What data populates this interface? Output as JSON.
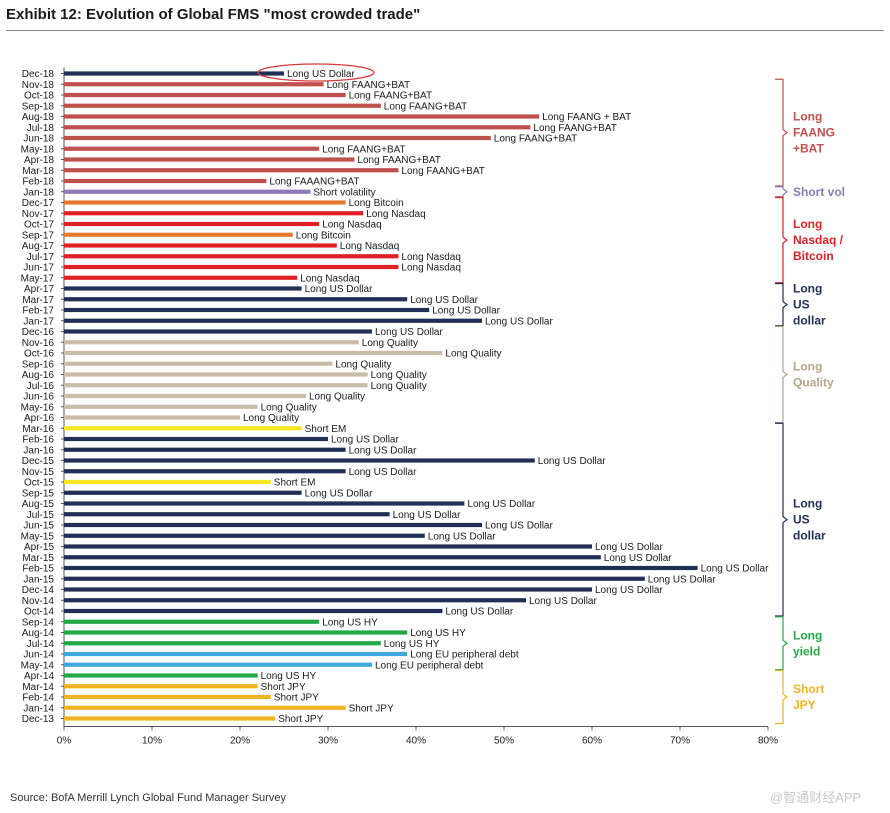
{
  "title": "Exhibit 12: Evolution of Global FMS \"most crowded trade\"",
  "source": "Source: BofA Merrill Lynch Global Fund Manager Survey",
  "watermark": "@智通财经APP",
  "chart_data": {
    "type": "bar",
    "orientation": "horizontal",
    "title": "Exhibit 12: Evolution of Global FMS \"most crowded trade\"",
    "xlim": [
      0,
      80
    ],
    "x_ticks": [
      "0%",
      "10%",
      "20%",
      "30%",
      "40%",
      "50%",
      "60%",
      "70%",
      "80%"
    ],
    "highlighted_category": "Dec-18",
    "bars": [
      {
        "date": "Dec-18",
        "value": 25,
        "label": "Long US Dollar",
        "color": "#1f2f55"
      },
      {
        "date": "Nov-18",
        "value": 29.5,
        "label": "Long FAANG+BAT",
        "color": "#c0504d"
      },
      {
        "date": "Oct-18",
        "value": 32,
        "label": "Long FAANG+BAT",
        "color": "#c0504d"
      },
      {
        "date": "Sep-18",
        "value": 36,
        "label": "Long FAANG+BAT",
        "color": "#c0504d"
      },
      {
        "date": "Aug-18",
        "value": 54,
        "label": "Long FAANG + BAT",
        "color": "#c0504d"
      },
      {
        "date": "Jul-18",
        "value": 53,
        "label": "Long FAANG+BAT",
        "color": "#c0504d"
      },
      {
        "date": "Jun-18",
        "value": 48.5,
        "label": "Long FAANG+BAT",
        "color": "#c0504d"
      },
      {
        "date": "May-18",
        "value": 29,
        "label": "Long FAANG+BAT",
        "color": "#c0504d"
      },
      {
        "date": "Apr-18",
        "value": 33,
        "label": "Long FAANG+BAT",
        "color": "#c0504d"
      },
      {
        "date": "Mar-18",
        "value": 38,
        "label": "Long FAANG+BAT",
        "color": "#c0504d"
      },
      {
        "date": "Feb-18",
        "value": 23,
        "label": "Long FAAANG+BAT",
        "color": "#c0504d"
      },
      {
        "date": "Jan-18",
        "value": 28,
        "label": "Short volatility",
        "color": "#8c7ab8"
      },
      {
        "date": "Dec-17",
        "value": 32,
        "label": "Long Bitcoin",
        "color": "#e57a2e"
      },
      {
        "date": "Nov-17",
        "value": 34,
        "label": "Long Nasdaq",
        "color": "#e01f26"
      },
      {
        "date": "Oct-17",
        "value": 29,
        "label": "Long Nasdaq",
        "color": "#e01f26"
      },
      {
        "date": "Sep-17",
        "value": 26,
        "label": "Long Bitcoin",
        "color": "#e57a2e"
      },
      {
        "date": "Aug-17",
        "value": 31,
        "label": "Long Nasdaq",
        "color": "#e01f26"
      },
      {
        "date": "Jul-17",
        "value": 38,
        "label": "Long Nasdaq",
        "color": "#e01f26"
      },
      {
        "date": "Jun-17",
        "value": 38,
        "label": "Long Nasdaq",
        "color": "#e01f26"
      },
      {
        "date": "May-17",
        "value": 26.5,
        "label": "Long Nasdaq",
        "color": "#e01f26"
      },
      {
        "date": "Apr-17",
        "value": 27,
        "label": "Long US Dollar",
        "color": "#1f2f55"
      },
      {
        "date": "Mar-17",
        "value": 39,
        "label": "Long US Dollar",
        "color": "#1f2f55"
      },
      {
        "date": "Feb-17",
        "value": 41.5,
        "label": "Long US Dollar",
        "color": "#1f2f55"
      },
      {
        "date": "Jan-17",
        "value": 47.5,
        "label": "Long US Dollar",
        "color": "#1f2f55"
      },
      {
        "date": "Dec-16",
        "value": 35,
        "label": "Long US Dollar",
        "color": "#1f2f55"
      },
      {
        "date": "Nov-16",
        "value": 33.5,
        "label": "Long Quality",
        "color": "#c9bda6"
      },
      {
        "date": "Oct-16",
        "value": 43,
        "label": "Long Quality",
        "color": "#c9bda6"
      },
      {
        "date": "Sep-16",
        "value": 30.5,
        "label": "Long Quality",
        "color": "#c9bda6"
      },
      {
        "date": "Aug-16",
        "value": 34.5,
        "label": "Long Quality",
        "color": "#c9bda6"
      },
      {
        "date": "Jul-16",
        "value": 34.5,
        "label": "Long Quality",
        "color": "#c9bda6"
      },
      {
        "date": "Jun-16",
        "value": 27.5,
        "label": "Long Quality",
        "color": "#c9bda6"
      },
      {
        "date": "May-16",
        "value": 22,
        "label": "Long Quality",
        "color": "#c9bda6"
      },
      {
        "date": "Apr-16",
        "value": 20,
        "label": "Long Quality",
        "color": "#c9bda6"
      },
      {
        "date": "Mar-16",
        "value": 27,
        "label": "Short EM",
        "color": "#f5e623"
      },
      {
        "date": "Feb-16",
        "value": 30,
        "label": "Long US Dollar",
        "color": "#1f2f55"
      },
      {
        "date": "Jan-16",
        "value": 32,
        "label": "Long US Dollar",
        "color": "#1f2f55"
      },
      {
        "date": "Dec-15",
        "value": 53.5,
        "label": "Long US Dollar",
        "color": "#1f2f55"
      },
      {
        "date": "Nov-15",
        "value": 32,
        "label": "Long US Dollar",
        "color": "#1f2f55"
      },
      {
        "date": "Oct-15",
        "value": 23.5,
        "label": "Short EM",
        "color": "#f5e623"
      },
      {
        "date": "Sep-15",
        "value": 27,
        "label": "Long US Dollar",
        "color": "#1f2f55"
      },
      {
        "date": "Aug-15",
        "value": 45.5,
        "label": "Long US Dollar",
        "color": "#1f2f55"
      },
      {
        "date": "Jul-15",
        "value": 37,
        "label": "Long US Dollar",
        "color": "#1f2f55"
      },
      {
        "date": "Jun-15",
        "value": 47.5,
        "label": "Long US Dollar",
        "color": "#1f2f55"
      },
      {
        "date": "May-15",
        "value": 41,
        "label": "Long US Dollar",
        "color": "#1f2f55"
      },
      {
        "date": "Apr-15",
        "value": 60,
        "label": "Long US Dollar",
        "color": "#1f2f55"
      },
      {
        "date": "Mar-15",
        "value": 61,
        "label": "Long US Dollar",
        "color": "#1f2f55"
      },
      {
        "date": "Feb-15",
        "value": 72,
        "label": "Long US Dollar",
        "color": "#1f2f55"
      },
      {
        "date": "Jan-15",
        "value": 66,
        "label": "Long US Dollar",
        "color": "#1f2f55"
      },
      {
        "date": "Dec-14",
        "value": 60,
        "label": "Long US Dollar",
        "color": "#1f2f55"
      },
      {
        "date": "Nov-14",
        "value": 52.5,
        "label": "Long US Dollar",
        "color": "#1f2f55"
      },
      {
        "date": "Oct-14",
        "value": 43,
        "label": "Long US Dollar",
        "color": "#1f2f55"
      },
      {
        "date": "Sep-14",
        "value": 29,
        "label": "Long US HY",
        "color": "#22a845"
      },
      {
        "date": "Aug-14",
        "value": 39,
        "label": "Long US HY",
        "color": "#22a845"
      },
      {
        "date": "Jul-14",
        "value": 36,
        "label": "Long US HY",
        "color": "#22a845"
      },
      {
        "date": "Jun-14",
        "value": 39,
        "label": "Long EU peripheral debt",
        "color": "#3fa9dd"
      },
      {
        "date": "May-14",
        "value": 35,
        "label": "Long EU peripheral debt",
        "color": "#3fa9dd"
      },
      {
        "date": "Apr-14",
        "value": 22,
        "label": "Long US HY",
        "color": "#22a845"
      },
      {
        "date": "Mar-14",
        "value": 22,
        "label": "Short JPY",
        "color": "#f0b323"
      },
      {
        "date": "Feb-14",
        "value": 23.5,
        "label": "Short JPY",
        "color": "#f0b323"
      },
      {
        "date": "Jan-14",
        "value": 32,
        "label": "Short JPY",
        "color": "#f0b323"
      },
      {
        "date": "Dec-13",
        "value": 24,
        "label": "Short JPY",
        "color": "#f0b323"
      }
    ],
    "groups": [
      {
        "from": "Nov-18",
        "to": "Feb-18",
        "lines": [
          "Long",
          "FAANG",
          "+BAT"
        ],
        "color": "#c0504d"
      },
      {
        "from": "Jan-18",
        "to": "Jan-18",
        "lines": [
          "Short vol"
        ],
        "color": "#8c7ab8"
      },
      {
        "from": "Dec-17",
        "to": "May-17",
        "lines": [
          "Long",
          "Nasdaq /",
          "Bitcoin"
        ],
        "color": "#e01f26"
      },
      {
        "from": "Apr-17",
        "to": "Jan-17",
        "lines": [
          "Long",
          "US",
          "dollar"
        ],
        "color": "#1f2f55"
      },
      {
        "from": "Dec-16",
        "to": "Apr-16",
        "lines": [
          "Long",
          "Quality"
        ],
        "color": "#b5a688"
      },
      {
        "from": "Mar-16",
        "to": "Oct-14",
        "lines": [
          "Long",
          "US",
          "dollar"
        ],
        "color": "#1f2f55"
      },
      {
        "from": "Sep-14",
        "to": "May-14",
        "lines": [
          "Long",
          "yield"
        ],
        "color": "#22a845"
      },
      {
        "from": "Apr-14",
        "to": "Dec-13",
        "lines": [
          "Short",
          "JPY"
        ],
        "color": "#f0b323"
      }
    ]
  }
}
